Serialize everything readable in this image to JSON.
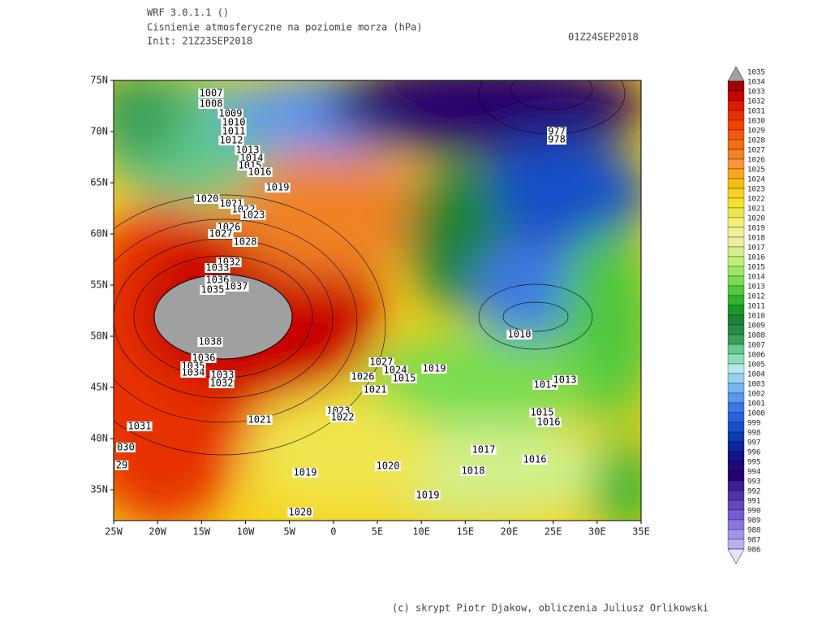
{
  "header": {
    "model": "WRF 3.0.1.1 ()",
    "title": "Cisnienie atmosferyczne na poziomie morza (hPa)",
    "init": "Init: 21Z23SEP2018",
    "valid": "01Z24SEP2018"
  },
  "axes": {
    "lat_labels": [
      "75N",
      "70N",
      "65N",
      "60N",
      "55N",
      "50N",
      "45N",
      "40N",
      "35N"
    ],
    "lon_labels": [
      "25W",
      "20W",
      "15W",
      "10W",
      "5W",
      "0",
      "5E",
      "10E",
      "15E",
      "20E",
      "25E",
      "30E",
      "35E"
    ]
  },
  "colorbar": {
    "levels": [
      1035,
      1034,
      1033,
      1032,
      1031,
      1030,
      1029,
      1028,
      1027,
      1026,
      1025,
      1024,
      1023,
      1022,
      1021,
      1020,
      1019,
      1018,
      1017,
      1016,
      1015,
      1014,
      1013,
      1012,
      1011,
      1010,
      1009,
      1008,
      1007,
      1006,
      1005,
      1004,
      1003,
      1002,
      1001,
      1000,
      999,
      998,
      997,
      996,
      995,
      994,
      993,
      992,
      991,
      990,
      989,
      988,
      987,
      986
    ],
    "colors": [
      "#a00000",
      "#b40000",
      "#c80000",
      "#dc1e00",
      "#e63200",
      "#f04600",
      "#f05a0a",
      "#f06e14",
      "#f08228",
      "#f5963c",
      "#f5aa1e",
      "#f5be14",
      "#f5d21e",
      "#f5e132",
      "#f0e650",
      "#f0f078",
      "#f0f096",
      "#e6f0a0",
      "#d2f08c",
      "#bef078",
      "#a0e664",
      "#78dc50",
      "#50c83c",
      "#32b432",
      "#1e9628",
      "#1e8232",
      "#288c46",
      "#3ca05a",
      "#64c88c",
      "#8cdcb4",
      "#b4e6f0",
      "#96d2f0",
      "#78b4f0",
      "#5a96f0",
      "#3c78e6",
      "#2864dc",
      "#1450c8",
      "#0a3cb4",
      "#0a28a0",
      "#14148c",
      "#1e0a78",
      "#28006e",
      "#3c1e96",
      "#5032aa",
      "#6446be",
      "#785ad2",
      "#8c78dc",
      "#a096e6",
      "#b4b4f0",
      "#e6e6fa"
    ]
  },
  "contour_labels": [
    "1007",
    "1008",
    "1009",
    "1010",
    "1011",
    "1012",
    "1013",
    "1014",
    "1015",
    "1016",
    "1019",
    "1020",
    "1021",
    "1022",
    "1023",
    "1026",
    "1027",
    "1028",
    "1032",
    "1033",
    "1035",
    "1036",
    "1037",
    "1038",
    "1036",
    "1035",
    "1034",
    "1033",
    "1032",
    "1031",
    "030",
    "29",
    "1027",
    "1024",
    "1015",
    "1026",
    "1021",
    "1019",
    "1023",
    "1022",
    "1021",
    "1020",
    "1019",
    "1019",
    "1020",
    "1017",
    "1018",
    "1016",
    "1015",
    "1016",
    "1014",
    "1013",
    "1010",
    "977",
    "978"
  ],
  "footer": "(c) skrypt Piotr Djakow, obliczenia Juliusz Orlikowski"
}
